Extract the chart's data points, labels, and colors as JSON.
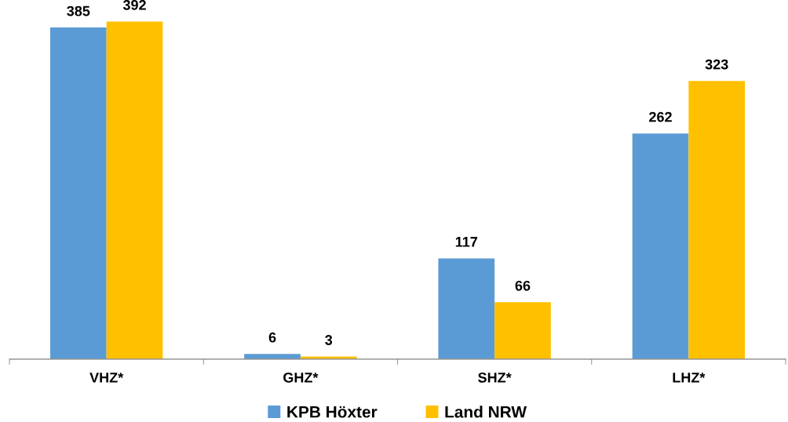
{
  "chart_data": {
    "type": "bar",
    "categories": [
      "VHZ*",
      "GHZ*",
      "SHZ*",
      "LHZ*"
    ],
    "series": [
      {
        "name": "KPB Höxter",
        "color": "#5b9bd5",
        "values": [
          385,
          6,
          117,
          262
        ]
      },
      {
        "name": "Land NRW",
        "color": "#ffc000",
        "values": [
          392,
          3,
          66,
          323
        ]
      }
    ],
    "data_labels": true,
    "legend": "bottom"
  }
}
